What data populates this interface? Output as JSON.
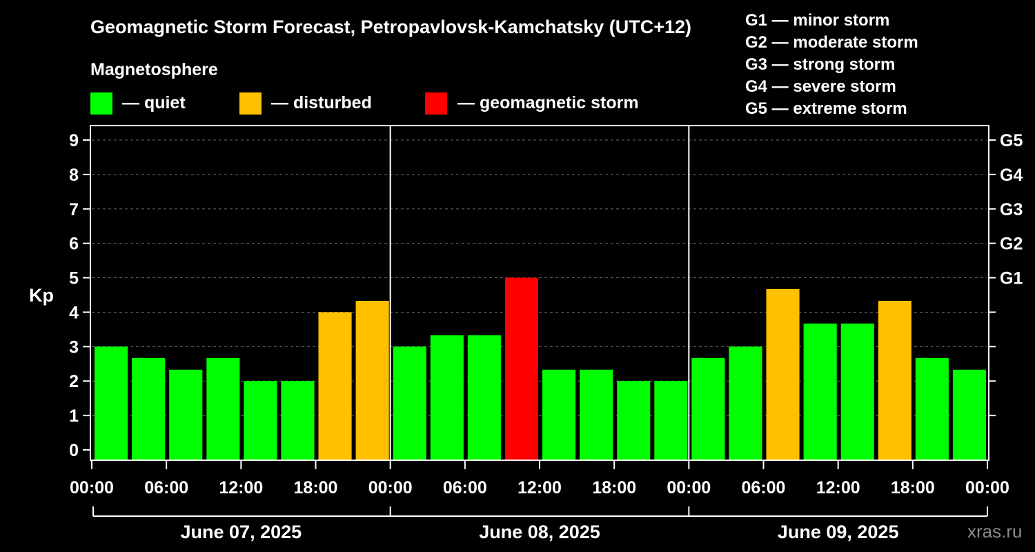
{
  "title": "Geomagnetic Storm Forecast, Petropavlovsk-Kamchatsky (UTC+12)",
  "legend": {
    "heading": "Magnetosphere",
    "items": [
      {
        "label": "— quiet",
        "color": "#00ff00"
      },
      {
        "label": "— disturbed",
        "color": "#ffc000"
      },
      {
        "label": "— geomagnetic storm",
        "color": "#ff0000"
      }
    ]
  },
  "storm_scale": [
    "G1 — minor storm",
    "G2 — moderate storm",
    "G3 — strong storm",
    "G4 — severe storm",
    "G5 — extreme storm"
  ],
  "watermark": "xras.ru",
  "chart_data": {
    "type": "bar",
    "ylabel": "Kp",
    "ylim": [
      -0.3,
      9.4
    ],
    "yticks": [
      0,
      1,
      2,
      3,
      4,
      5,
      6,
      7,
      8,
      9
    ],
    "right_ticks": [
      {
        "value": 5,
        "label": "G1"
      },
      {
        "value": 6,
        "label": "G2"
      },
      {
        "value": 7,
        "label": "G3"
      },
      {
        "value": 8,
        "label": "G4"
      },
      {
        "value": 9,
        "label": "G5"
      }
    ],
    "grid": true,
    "xtick_labels": [
      "00:00",
      "06:00",
      "12:00",
      "18:00",
      "00:00",
      "06:00",
      "12:00",
      "18:00",
      "00:00",
      "06:00",
      "12:00",
      "18:00",
      "00:00"
    ],
    "days": [
      "June 07, 2025",
      "June 08, 2025",
      "June 09, 2025"
    ],
    "values": [
      3.0,
      2.67,
      2.33,
      2.67,
      2.0,
      2.0,
      4.0,
      4.33,
      3.0,
      3.33,
      3.33,
      5.0,
      2.33,
      2.33,
      2.0,
      2.0,
      2.67,
      3.0,
      4.67,
      3.67,
      3.67,
      4.33,
      2.67,
      2.33
    ],
    "levels": [
      "quiet",
      "quiet",
      "quiet",
      "quiet",
      "quiet",
      "quiet",
      "disturbed",
      "disturbed",
      "quiet",
      "quiet",
      "quiet",
      "storm",
      "quiet",
      "quiet",
      "quiet",
      "quiet",
      "quiet",
      "quiet",
      "disturbed",
      "quiet",
      "quiet",
      "disturbed",
      "quiet",
      "quiet"
    ],
    "level_colors": {
      "quiet": "#00ff00",
      "disturbed": "#ffc000",
      "storm": "#ff0000"
    }
  }
}
